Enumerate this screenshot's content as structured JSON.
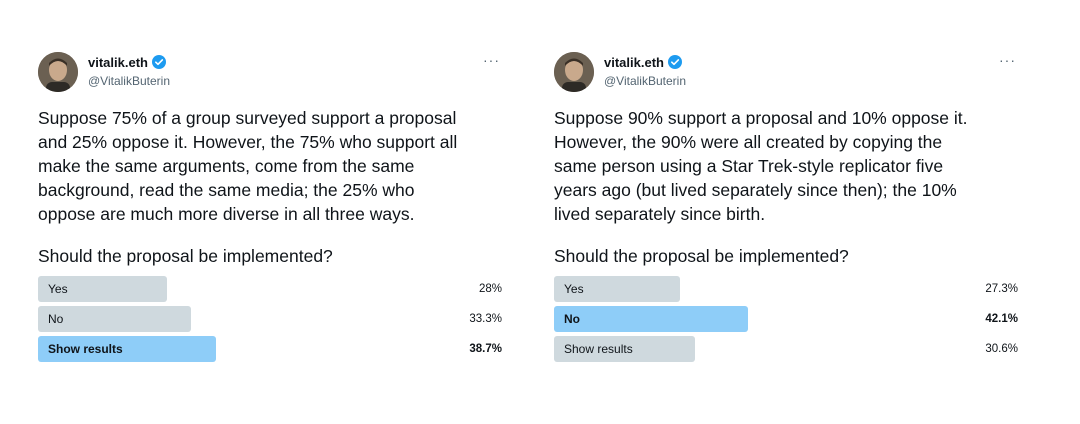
{
  "tweets": [
    {
      "author": {
        "name": "vitalik.eth",
        "handle": "@VitalikButerin"
      },
      "more_label": "···",
      "text": "Suppose 75% of a group surveyed support a proposal\nand 25% oppose it. However, the 75% who support all\nmake the same arguments, come from the same\nbackground, read the same media; the 25% who\noppose are much more diverse in all three ways.",
      "question": "Should the proposal be implemented?",
      "poll": [
        {
          "label": "Yes",
          "percent": "28%",
          "fraction": 0.28,
          "highlighted": false
        },
        {
          "label": "No",
          "percent": "33.3%",
          "fraction": 0.333,
          "highlighted": false
        },
        {
          "label": "Show results",
          "percent": "38.7%",
          "fraction": 0.387,
          "highlighted": true
        }
      ]
    },
    {
      "author": {
        "name": "vitalik.eth",
        "handle": "@VitalikButerin"
      },
      "more_label": "···",
      "text": "Suppose 90% support a proposal and 10% oppose it.\nHowever, the 90% were all created by copying the\nsame person using a Star Trek-style replicator five\nyears ago (but lived separately since then); the 10%\nlived separately since birth.",
      "question": "Should the proposal be implemented?",
      "poll": [
        {
          "label": "Yes",
          "percent": "27.3%",
          "fraction": 0.273,
          "highlighted": false
        },
        {
          "label": "No",
          "percent": "42.1%",
          "fraction": 0.421,
          "highlighted": true
        },
        {
          "label": "Show results",
          "percent": "30.6%",
          "fraction": 0.306,
          "highlighted": false
        }
      ]
    }
  ],
  "colors": {
    "bar": "#cfd9de",
    "bar_highlight": "#8ecdf8",
    "verified": "#1d9bf0",
    "secondary_text": "#536471"
  }
}
